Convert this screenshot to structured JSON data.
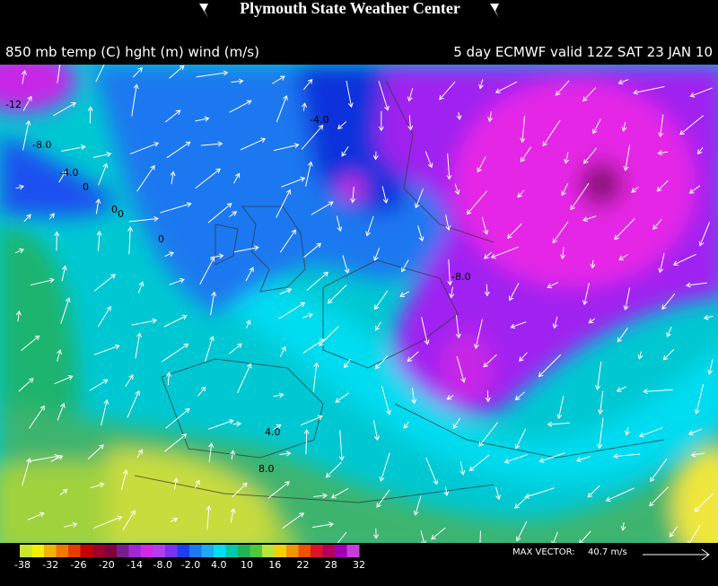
{
  "header": {
    "title": "Plymouth State Weather Center",
    "left_label": "850 mb temp (C) hght (m) wind (m/s)",
    "right_label": "5 day ECMWF valid 12Z SAT 23 JAN 10"
  },
  "contour_labels": [
    "-12",
    "-8.0",
    "-4.0",
    "0",
    "0",
    "0",
    "0",
    "-4.0",
    "-8.0",
    "4.0",
    "8.0"
  ],
  "colorbar": {
    "labels": [
      "-38",
      "-32",
      "-26",
      "-20",
      "-14",
      "-8.0",
      "-2.0",
      "4.0",
      "10",
      "16",
      "22",
      "28",
      "32"
    ],
    "colors": [
      "#c8e632",
      "#f0f000",
      "#f0b400",
      "#f07800",
      "#e63c00",
      "#c80000",
      "#a00028",
      "#82003c",
      "#781e8c",
      "#a028d2",
      "#d228e6",
      "#b43cf0",
      "#7832f0",
      "#1e3cf0",
      "#1e78f0",
      "#1eaaf0",
      "#00dcf0",
      "#00c8aa",
      "#1eb45a",
      "#50c83c",
      "#b4e63c",
      "#f0d200",
      "#f09600",
      "#f05000",
      "#dc1428",
      "#b4005a",
      "#a000b4",
      "#c83cdc"
    ]
  },
  "max_vector": {
    "label": "MAX VECTOR:",
    "value": "40.7 m/s"
  }
}
